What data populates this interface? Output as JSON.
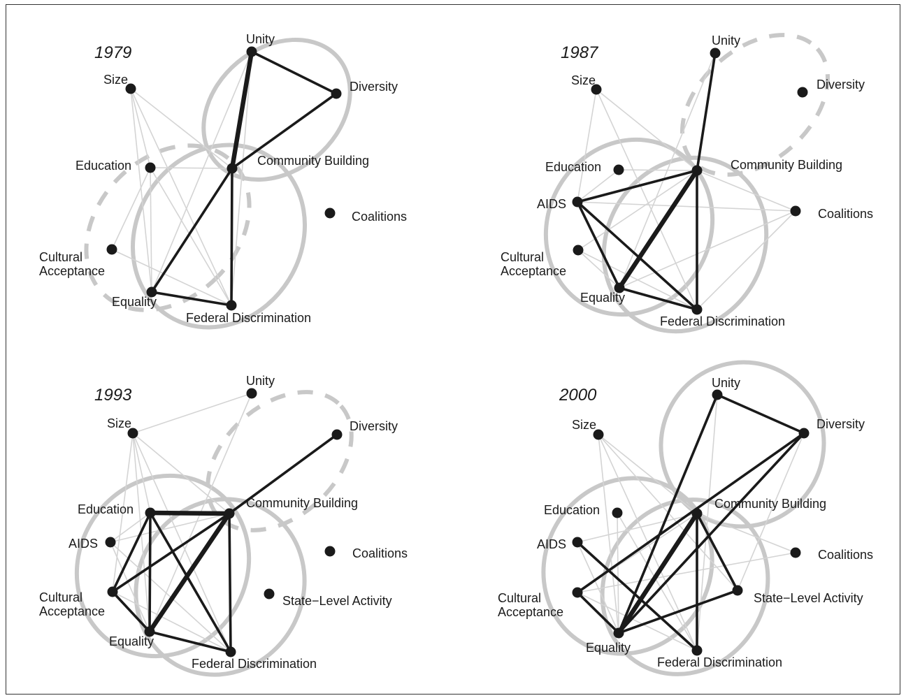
{
  "figure": {
    "style": {
      "cluster_color": "#c8c8c8",
      "weak_edge_color": "#d4d4d4",
      "strong_edge_color": "#1a1a1a",
      "node_color": "#1a1a1a"
    },
    "panels": [
      {
        "year": "1979",
        "nodes": [
          {
            "id": "unity",
            "label": "Unity"
          },
          {
            "id": "size",
            "label": "Size"
          },
          {
            "id": "diversity",
            "label": "Diversity"
          },
          {
            "id": "education",
            "label": "Education"
          },
          {
            "id": "community",
            "label": "Community Building"
          },
          {
            "id": "coalitions",
            "label": "Coalitions"
          },
          {
            "id": "cultural",
            "label": "Cultural\nAcceptance"
          },
          {
            "id": "equality",
            "label": "Equality"
          },
          {
            "id": "federal",
            "label": "Federal Discrimination"
          }
        ],
        "strong_edges": [
          {
            "from": "unity",
            "to": "diversity",
            "weight": 2
          },
          {
            "from": "unity",
            "to": "community",
            "weight": 3
          },
          {
            "from": "diversity",
            "to": "community",
            "weight": 2
          },
          {
            "from": "community",
            "to": "equality",
            "weight": 2
          },
          {
            "from": "community",
            "to": "federal",
            "weight": 2
          },
          {
            "from": "equality",
            "to": "federal",
            "weight": 2
          }
        ],
        "weak_edges": [
          [
            "size",
            "community"
          ],
          [
            "size",
            "equality"
          ],
          [
            "size",
            "federal"
          ],
          [
            "size",
            "education"
          ],
          [
            "education",
            "community"
          ],
          [
            "education",
            "equality"
          ],
          [
            "education",
            "federal"
          ],
          [
            "cultural",
            "federal"
          ],
          [
            "cultural",
            "education"
          ],
          [
            "unity",
            "equality"
          ],
          [
            "unity",
            "federal"
          ]
        ]
      },
      {
        "year": "1987",
        "nodes": [
          {
            "id": "unity",
            "label": "Unity"
          },
          {
            "id": "size",
            "label": "Size"
          },
          {
            "id": "diversity",
            "label": "Diversity"
          },
          {
            "id": "education",
            "label": "Education"
          },
          {
            "id": "community",
            "label": "Community Building"
          },
          {
            "id": "aids",
            "label": "AIDS"
          },
          {
            "id": "coalitions",
            "label": "Coalitions"
          },
          {
            "id": "cultural",
            "label": "Cultural\nAcceptance"
          },
          {
            "id": "equality",
            "label": "Equality"
          },
          {
            "id": "federal",
            "label": "Federal Discrimination"
          }
        ],
        "strong_edges": [
          {
            "from": "unity",
            "to": "community",
            "weight": 2
          },
          {
            "from": "aids",
            "to": "community",
            "weight": 2
          },
          {
            "from": "aids",
            "to": "equality",
            "weight": 2
          },
          {
            "from": "aids",
            "to": "federal",
            "weight": 2
          },
          {
            "from": "community",
            "to": "equality",
            "weight": 3
          },
          {
            "from": "community",
            "to": "federal",
            "weight": 2
          },
          {
            "from": "equality",
            "to": "federal",
            "weight": 2
          }
        ],
        "weak_edges": [
          [
            "size",
            "aids"
          ],
          [
            "size",
            "federal"
          ],
          [
            "size",
            "community"
          ],
          [
            "education",
            "community"
          ],
          [
            "aids",
            "coalitions"
          ],
          [
            "aids",
            "education"
          ],
          [
            "cultural",
            "community"
          ],
          [
            "cultural",
            "federal"
          ],
          [
            "coalitions",
            "community"
          ],
          [
            "coalitions",
            "equality"
          ],
          [
            "coalitions",
            "federal"
          ],
          [
            "equality",
            "cultural"
          ],
          [
            "unity",
            "equality"
          ]
        ]
      },
      {
        "year": "1993",
        "nodes": [
          {
            "id": "unity",
            "label": "Unity"
          },
          {
            "id": "size",
            "label": "Size"
          },
          {
            "id": "diversity",
            "label": "Diversity"
          },
          {
            "id": "education",
            "label": "Education"
          },
          {
            "id": "community",
            "label": "Community Building"
          },
          {
            "id": "aids",
            "label": "AIDS"
          },
          {
            "id": "coalitions",
            "label": "Coalitions"
          },
          {
            "id": "cultural",
            "label": "Cultural\nAcceptance"
          },
          {
            "id": "state",
            "label": "State−Level Activity"
          },
          {
            "id": "equality",
            "label": "Equality"
          },
          {
            "id": "federal",
            "label": "Federal Discrimination"
          }
        ],
        "strong_edges": [
          {
            "from": "diversity",
            "to": "community",
            "weight": 2
          },
          {
            "from": "education",
            "to": "community",
            "weight": 3
          },
          {
            "from": "education",
            "to": "cultural",
            "weight": 2
          },
          {
            "from": "education",
            "to": "equality",
            "weight": 2
          },
          {
            "from": "education",
            "to": "federal",
            "weight": 2
          },
          {
            "from": "community",
            "to": "cultural",
            "weight": 2
          },
          {
            "from": "community",
            "to": "equality",
            "weight": 3
          },
          {
            "from": "community",
            "to": "federal",
            "weight": 2
          },
          {
            "from": "cultural",
            "to": "equality",
            "weight": 2
          },
          {
            "from": "equality",
            "to": "federal",
            "weight": 2
          }
        ],
        "weak_edges": [
          [
            "size",
            "unity"
          ],
          [
            "size",
            "community"
          ],
          [
            "size",
            "cultural"
          ],
          [
            "size",
            "equality"
          ],
          [
            "size",
            "federal"
          ],
          [
            "unity",
            "equality"
          ],
          [
            "aids",
            "education"
          ],
          [
            "aids",
            "equality"
          ],
          [
            "aids",
            "federal"
          ],
          [
            "aids",
            "community"
          ],
          [
            "cultural",
            "federal"
          ],
          [
            "education",
            "size"
          ]
        ]
      },
      {
        "year": "2000",
        "nodes": [
          {
            "id": "unity",
            "label": "Unity"
          },
          {
            "id": "size",
            "label": "Size"
          },
          {
            "id": "diversity",
            "label": "Diversity"
          },
          {
            "id": "education",
            "label": "Education"
          },
          {
            "id": "community",
            "label": "Community Building"
          },
          {
            "id": "aids",
            "label": "AIDS"
          },
          {
            "id": "coalitions",
            "label": "Coalitions"
          },
          {
            "id": "cultural",
            "label": "Cultural\nAcceptance"
          },
          {
            "id": "state",
            "label": "State−Level Activity"
          },
          {
            "id": "equality",
            "label": "Equality"
          },
          {
            "id": "federal",
            "label": "Federal Discrimination"
          }
        ],
        "strong_edges": [
          {
            "from": "unity",
            "to": "diversity",
            "weight": 2
          },
          {
            "from": "unity",
            "to": "equality",
            "weight": 2
          },
          {
            "from": "diversity",
            "to": "cultural",
            "weight": 2
          },
          {
            "from": "diversity",
            "to": "equality",
            "weight": 2
          },
          {
            "from": "community",
            "to": "equality",
            "weight": 3
          },
          {
            "from": "community",
            "to": "federal",
            "weight": 2
          },
          {
            "from": "community",
            "to": "state",
            "weight": 2
          },
          {
            "from": "cultural",
            "to": "equality",
            "weight": 2
          },
          {
            "from": "aids",
            "to": "federal",
            "weight": 2
          },
          {
            "from": "equality",
            "to": "state",
            "weight": 2
          }
        ],
        "weak_edges": [
          [
            "size",
            "community"
          ],
          [
            "size",
            "equality"
          ],
          [
            "size",
            "federal"
          ],
          [
            "size",
            "state"
          ],
          [
            "education",
            "equality"
          ],
          [
            "education",
            "federal"
          ],
          [
            "aids",
            "equality"
          ],
          [
            "aids",
            "community"
          ],
          [
            "cultural",
            "federal"
          ],
          [
            "coalitions",
            "community"
          ],
          [
            "coalitions",
            "cultural"
          ],
          [
            "unity",
            "federal"
          ],
          [
            "diversity",
            "state"
          ],
          [
            "cultural",
            "community"
          ]
        ]
      }
    ]
  }
}
